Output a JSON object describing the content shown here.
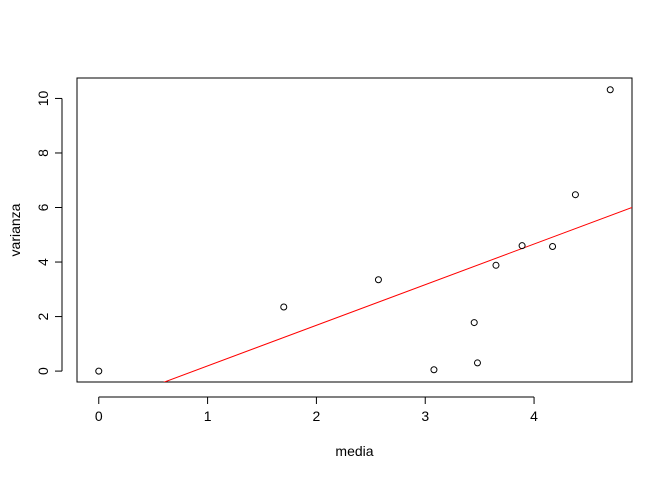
{
  "chart_data": {
    "type": "scatter",
    "title": "",
    "xlabel": "media",
    "ylabel": "varianza",
    "xlim": [
      -0.2,
      4.9
    ],
    "ylim": [
      -0.4,
      10.75
    ],
    "x_ticks": [
      0,
      1,
      2,
      3,
      4
    ],
    "y_ticks": [
      0,
      2,
      4,
      6,
      8,
      10
    ],
    "grid": false,
    "legend": "none",
    "series": [
      {
        "points": [
          {
            "x": 0.0,
            "y": 0.0
          },
          {
            "x": 1.7,
            "y": 2.35
          },
          {
            "x": 2.57,
            "y": 3.35
          },
          {
            "x": 3.08,
            "y": 0.05
          },
          {
            "x": 3.45,
            "y": 1.78
          },
          {
            "x": 3.48,
            "y": 0.3
          },
          {
            "x": 3.65,
            "y": 3.88
          },
          {
            "x": 3.89,
            "y": 4.6
          },
          {
            "x": 4.17,
            "y": 4.57
          },
          {
            "x": 4.38,
            "y": 6.47
          },
          {
            "x": 4.7,
            "y": 10.32
          }
        ]
      }
    ],
    "fit_line": {
      "type": "linear",
      "intercept": -1.3,
      "slope": 1.49,
      "color": "#ff0000"
    },
    "point_color": "#000000"
  }
}
